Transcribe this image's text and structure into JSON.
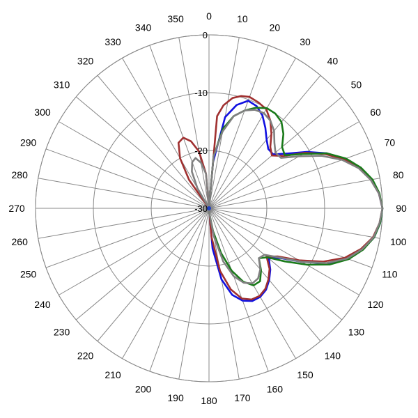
{
  "chart_data": {
    "type": "polar-line",
    "angular_ticks": [
      "0",
      "10",
      "20",
      "30",
      "40",
      "50",
      "60",
      "70",
      "80",
      "90",
      "100",
      "110",
      "120",
      "130",
      "140",
      "150",
      "160",
      "170",
      "180",
      "190",
      "200",
      "210",
      "220",
      "230",
      "240",
      "250",
      "260",
      "270",
      "280",
      "290",
      "300",
      "310",
      "320",
      "330",
      "340",
      "350"
    ],
    "radial_ticks": [
      "0",
      "-10",
      "-20",
      "-30"
    ],
    "radial_range": [
      -30,
      0
    ],
    "grid": true,
    "series": [
      {
        "color": "#1010e0",
        "points": [
          [
            0,
            -30
          ],
          [
            5,
            -22
          ],
          [
            10,
            -14
          ],
          [
            15,
            -11.5
          ],
          [
            20,
            -10.2
          ],
          [
            25,
            -10.5
          ],
          [
            30,
            -11.5
          ],
          [
            35,
            -13
          ],
          [
            40,
            -14.5
          ],
          [
            45,
            -15.5
          ],
          [
            50,
            -15.5
          ],
          [
            55,
            -13.5
          ],
          [
            60,
            -10.5
          ],
          [
            65,
            -7.5
          ],
          [
            70,
            -5
          ],
          [
            75,
            -3
          ],
          [
            80,
            -1.5
          ],
          [
            85,
            -0.5
          ],
          [
            90,
            0
          ],
          [
            95,
            -0.3
          ],
          [
            100,
            -1
          ],
          [
            105,
            -2.5
          ],
          [
            110,
            -4.5
          ],
          [
            115,
            -7.5
          ],
          [
            120,
            -11.5
          ],
          [
            125,
            -15
          ],
          [
            130,
            -16.5
          ],
          [
            135,
            -15
          ],
          [
            140,
            -13.8
          ],
          [
            145,
            -12.8
          ],
          [
            150,
            -12.3
          ],
          [
            155,
            -12.3
          ],
          [
            160,
            -13
          ],
          [
            165,
            -14.5
          ],
          [
            170,
            -17.5
          ],
          [
            175,
            -23
          ],
          [
            180,
            -30
          ]
        ]
      },
      {
        "color": "#a03030",
        "points": [
          [
            0,
            -30
          ],
          [
            355,
            -24
          ],
          [
            350,
            -20
          ],
          [
            345,
            -18
          ],
          [
            340,
            -17
          ],
          [
            335,
            -17.5
          ],
          [
            330,
            -20
          ],
          [
            325,
            -24
          ],
          [
            320,
            -30
          ]
        ]
      },
      {
        "color": "#a03030",
        "points": [
          [
            0,
            -30
          ],
          [
            5,
            -14
          ],
          [
            8,
            -12
          ],
          [
            12,
            -10.5
          ],
          [
            16,
            -9.8
          ],
          [
            20,
            -9.5
          ],
          [
            25,
            -9.8
          ],
          [
            30,
            -10.2
          ],
          [
            35,
            -11.5
          ],
          [
            40,
            -13.2
          ],
          [
            45,
            -15
          ],
          [
            50,
            -15.8
          ],
          [
            55,
            -14.2
          ],
          [
            60,
            -10.8
          ],
          [
            65,
            -7.8
          ],
          [
            70,
            -5.2
          ],
          [
            75,
            -3.1
          ],
          [
            80,
            -1.6
          ],
          [
            85,
            -0.5
          ],
          [
            90,
            0
          ],
          [
            95,
            -0.4
          ],
          [
            100,
            -1.2
          ],
          [
            105,
            -2.8
          ],
          [
            110,
            -5
          ],
          [
            115,
            -8.2
          ],
          [
            120,
            -12
          ],
          [
            125,
            -15.5
          ],
          [
            130,
            -17
          ],
          [
            135,
            -15.2
          ],
          [
            140,
            -14
          ],
          [
            145,
            -13
          ],
          [
            150,
            -12.5
          ],
          [
            155,
            -12.6
          ],
          [
            160,
            -13.4
          ],
          [
            165,
            -15.5
          ],
          [
            170,
            -19
          ],
          [
            175,
            -25
          ],
          [
            180,
            -30
          ]
        ]
      },
      {
        "color": "#1a7a1a",
        "points": [
          [
            0,
            -30
          ],
          [
            5,
            -21
          ],
          [
            10,
            -16
          ],
          [
            15,
            -13.5
          ],
          [
            20,
            -12
          ],
          [
            25,
            -10.8
          ],
          [
            30,
            -10
          ],
          [
            35,
            -10
          ],
          [
            40,
            -10.5
          ],
          [
            45,
            -11.8
          ],
          [
            50,
            -13.5
          ],
          [
            55,
            -14
          ],
          [
            60,
            -11.2
          ],
          [
            65,
            -7.5
          ],
          [
            70,
            -4.8
          ],
          [
            75,
            -2.8
          ],
          [
            80,
            -1.3
          ],
          [
            85,
            -0.4
          ],
          [
            90,
            0
          ],
          [
            95,
            -0.3
          ],
          [
            100,
            -1
          ],
          [
            105,
            -2.4
          ],
          [
            110,
            -4.3
          ],
          [
            115,
            -7
          ],
          [
            120,
            -10.5
          ],
          [
            125,
            -14
          ],
          [
            130,
            -16.8
          ],
          [
            135,
            -17.8
          ],
          [
            140,
            -16
          ],
          [
            145,
            -14.6
          ],
          [
            150,
            -14.6
          ],
          [
            155,
            -16
          ],
          [
            160,
            -18.5
          ],
          [
            165,
            -22
          ],
          [
            170,
            -26
          ],
          [
            175,
            -29
          ],
          [
            180,
            -30
          ]
        ]
      },
      {
        "color": "#808080",
        "points": [
          [
            0,
            -30
          ],
          [
            5,
            -21
          ],
          [
            10,
            -16.5
          ],
          [
            15,
            -13.5
          ],
          [
            20,
            -12
          ],
          [
            25,
            -11.2
          ],
          [
            30,
            -11
          ],
          [
            35,
            -11.5
          ],
          [
            40,
            -12.5
          ],
          [
            45,
            -14
          ],
          [
            50,
            -15
          ],
          [
            55,
            -14.8
          ],
          [
            60,
            -12
          ],
          [
            65,
            -8.5
          ],
          [
            70,
            -5.5
          ],
          [
            75,
            -3.2
          ],
          [
            80,
            -1.6
          ],
          [
            85,
            -0.5
          ],
          [
            90,
            0
          ],
          [
            95,
            -0.4
          ],
          [
            100,
            -1.1
          ],
          [
            105,
            -2.6
          ],
          [
            110,
            -4.6
          ],
          [
            115,
            -7.6
          ],
          [
            120,
            -11.5
          ],
          [
            125,
            -15.2
          ],
          [
            130,
            -17.5
          ],
          [
            135,
            -17.8
          ],
          [
            140,
            -16.2
          ],
          [
            145,
            -15.2
          ],
          [
            150,
            -15
          ],
          [
            155,
            -15.8
          ],
          [
            160,
            -17.5
          ],
          [
            165,
            -20.5
          ],
          [
            170,
            -25
          ],
          [
            175,
            -29
          ],
          [
            180,
            -30
          ]
        ]
      },
      {
        "color": "#808080",
        "points": [
          [
            0,
            -30
          ],
          [
            355,
            -24
          ],
          [
            350,
            -22
          ],
          [
            345,
            -21
          ],
          [
            340,
            -21.5
          ],
          [
            335,
            -23
          ],
          [
            330,
            -26
          ],
          [
            325,
            -30
          ]
        ]
      }
    ]
  }
}
